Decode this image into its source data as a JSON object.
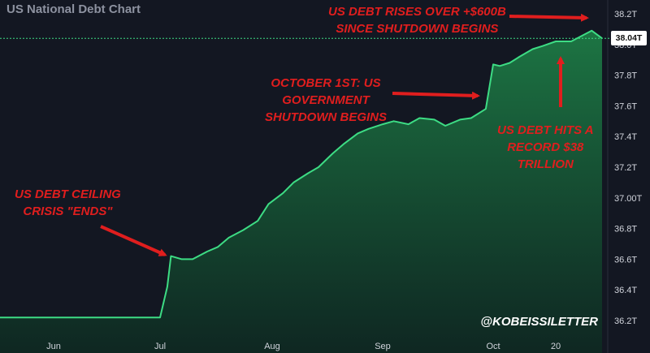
{
  "title": "US National Debt Chart",
  "watermark": "@KOBEISSILETTER",
  "last_value_label": "38.04T",
  "colors": {
    "background": "#131722",
    "line": "#3ddc84",
    "annotation": "#e01e1e",
    "axis_text": "#d1d4dc"
  },
  "annotations": {
    "a1": [
      "US DEBT CEILING",
      "CRISIS \"ENDS\""
    ],
    "a2": [
      "OCTOBER 1ST: US",
      "GOVERNMENT",
      "SHUTDOWN BEGINS"
    ],
    "a3": [
      "US DEBT RISES OVER +$600B",
      "SINCE SHUTDOWN BEGINS"
    ],
    "a4": [
      "US DEBT HITS A",
      "RECORD $38",
      "TRILLION"
    ]
  },
  "chart_data": {
    "type": "area",
    "title": "US National Debt Chart",
    "xlabel": "",
    "ylabel": "",
    "ylim": [
      36.2,
      38.2
    ],
    "y_ticks": [
      "36.2T",
      "36.4T",
      "36.6T",
      "36.8T",
      "37.00T",
      "37.2T",
      "37.4T",
      "37.6T",
      "37.8T",
      "38.0T",
      "38.2T"
    ],
    "x_ticks": [
      "Jun",
      "Jul",
      "Aug",
      "Sep",
      "Oct",
      "20"
    ],
    "x_tick_dates": [
      "2025-06-01",
      "2025-07-01",
      "2025-08-01",
      "2025-09-01",
      "2025-10-01",
      "2025-10-20"
    ],
    "grid": false,
    "last_value": 38.04,
    "series": [
      {
        "x": [
          "2025-05-01",
          "2025-05-15",
          "2025-06-01",
          "2025-06-15",
          "2025-07-01",
          "2025-07-03",
          "2025-07-04",
          "2025-07-07",
          "2025-07-10",
          "2025-07-14",
          "2025-07-17",
          "2025-07-20",
          "2025-07-24",
          "2025-07-28",
          "2025-07-31",
          "2025-08-04",
          "2025-08-07",
          "2025-08-11",
          "2025-08-14",
          "2025-08-18",
          "2025-08-21",
          "2025-08-25",
          "2025-08-28",
          "2025-09-01",
          "2025-09-04",
          "2025-09-08",
          "2025-09-11",
          "2025-09-15",
          "2025-09-18",
          "2025-09-22",
          "2025-09-25",
          "2025-09-29",
          "2025-10-01",
          "2025-10-03",
          "2025-10-06",
          "2025-10-09",
          "2025-10-13",
          "2025-10-16",
          "2025-10-20",
          "2025-10-23",
          "2025-10-27",
          "2025-10-29"
        ],
        "values": [
          36.22,
          36.22,
          36.22,
          36.22,
          36.22,
          36.42,
          36.62,
          36.6,
          36.6,
          36.65,
          36.68,
          36.74,
          36.79,
          36.85,
          36.96,
          37.03,
          37.1,
          37.16,
          37.2,
          37.29,
          37.35,
          37.42,
          37.45,
          37.48,
          37.5,
          37.48,
          37.52,
          37.51,
          37.47,
          37.51,
          37.52,
          37.58,
          37.87,
          37.86,
          37.88,
          37.92,
          37.97,
          37.99,
          38.02,
          38.02,
          38.09,
          38.04
        ]
      }
    ]
  }
}
